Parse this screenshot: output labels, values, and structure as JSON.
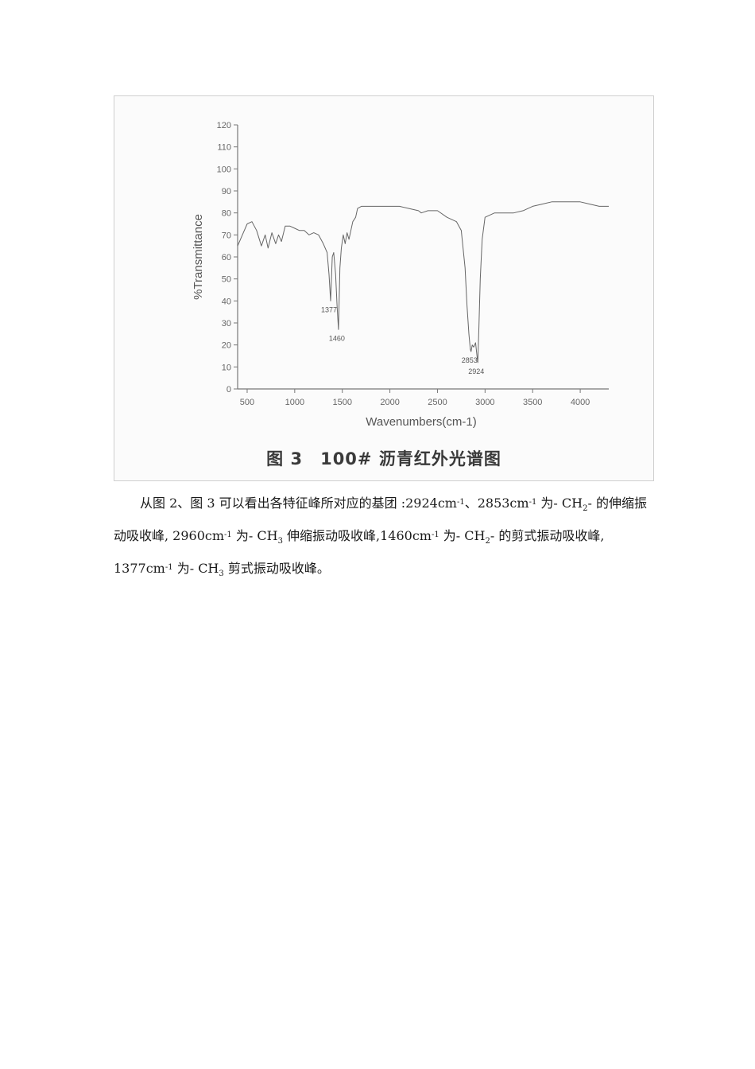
{
  "figure": {
    "caption": "图 3　100# 沥青红外光谱图"
  },
  "chart_data": {
    "type": "line",
    "xlabel": "Wavenumbers(cm-1)",
    "ylabel": "%Transmittance",
    "xlim": [
      400,
      4300
    ],
    "ylim": [
      0,
      120
    ],
    "x_ticks": [
      500,
      1000,
      1500,
      2000,
      2500,
      3000,
      3500,
      4000
    ],
    "y_ticks": [
      0,
      10,
      20,
      30,
      40,
      50,
      60,
      70,
      80,
      90,
      100,
      110,
      120
    ],
    "grid": false,
    "series": [
      {
        "x": [
          400,
          450,
          500,
          550,
          600,
          650,
          690,
          720,
          760,
          800,
          830,
          860,
          900,
          950,
          1000,
          1050,
          1100,
          1150,
          1200,
          1250,
          1300,
          1340,
          1360,
          1377,
          1395,
          1410,
          1430,
          1445,
          1460,
          1475,
          1490,
          1510,
          1530,
          1550,
          1570,
          1590,
          1610,
          1640,
          1660,
          1700,
          1800,
          1900,
          2000,
          2100,
          2200,
          2300,
          2330,
          2400,
          2500,
          2600,
          2700,
          2750,
          2790,
          2810,
          2830,
          2845,
          2853,
          2865,
          2880,
          2900,
          2915,
          2924,
          2935,
          2950,
          2970,
          3000,
          3050,
          3100,
          3200,
          3300,
          3400,
          3500,
          3600,
          3700,
          3800,
          3900,
          4000,
          4100,
          4200,
          4300
        ],
        "y": [
          65,
          70,
          75,
          76,
          72,
          65,
          70,
          64,
          71,
          66,
          70,
          67,
          74,
          74,
          73,
          72,
          72,
          70,
          71,
          70,
          66,
          62,
          52,
          40,
          60,
          62,
          52,
          38,
          27,
          55,
          64,
          70,
          66,
          71,
          68,
          72,
          76,
          78,
          82,
          83,
          83,
          83,
          83,
          83,
          82,
          81,
          80,
          81,
          81,
          78,
          76,
          72,
          55,
          38,
          25,
          18,
          17,
          20,
          19,
          21,
          15,
          12,
          28,
          50,
          68,
          78,
          79,
          80,
          80,
          80,
          81,
          83,
          84,
          85,
          85,
          85,
          85,
          84,
          83,
          83
        ]
      }
    ],
    "annotations": [
      {
        "label": "1377",
        "x": 1377,
        "y": 40
      },
      {
        "label": "1460",
        "x": 1460,
        "y": 27
      },
      {
        "label": "2853",
        "x": 2853,
        "y": 17
      },
      {
        "label": "2924",
        "x": 2924,
        "y": 12
      }
    ]
  },
  "paragraph": {
    "s1": "从图 2、图  3  可以看出各特征峰所对应的基团  :2924cm",
    "s1_sup": "-1",
    "s2": "、2853cm",
    "s2_sup": "-1",
    "s3": " 为- CH",
    "s3_sub": "2",
    "s4": "- 的伸缩振动吸收峰, 2960cm",
    "s4_sup": "-1",
    "s5": " 为- CH",
    "s5_sub": "3",
    "s6": " 伸缩振动吸收峰,1460cm",
    "s6_sup": "-1",
    "s7": " 为- CH",
    "s7_sub": "2",
    "s8": "-  的剪式振动吸收峰, 1377cm",
    "s8_sup": "-1",
    "s9": " 为- CH",
    "s9_sub": "3",
    "s10": " 剪式振动吸收峰。"
  }
}
